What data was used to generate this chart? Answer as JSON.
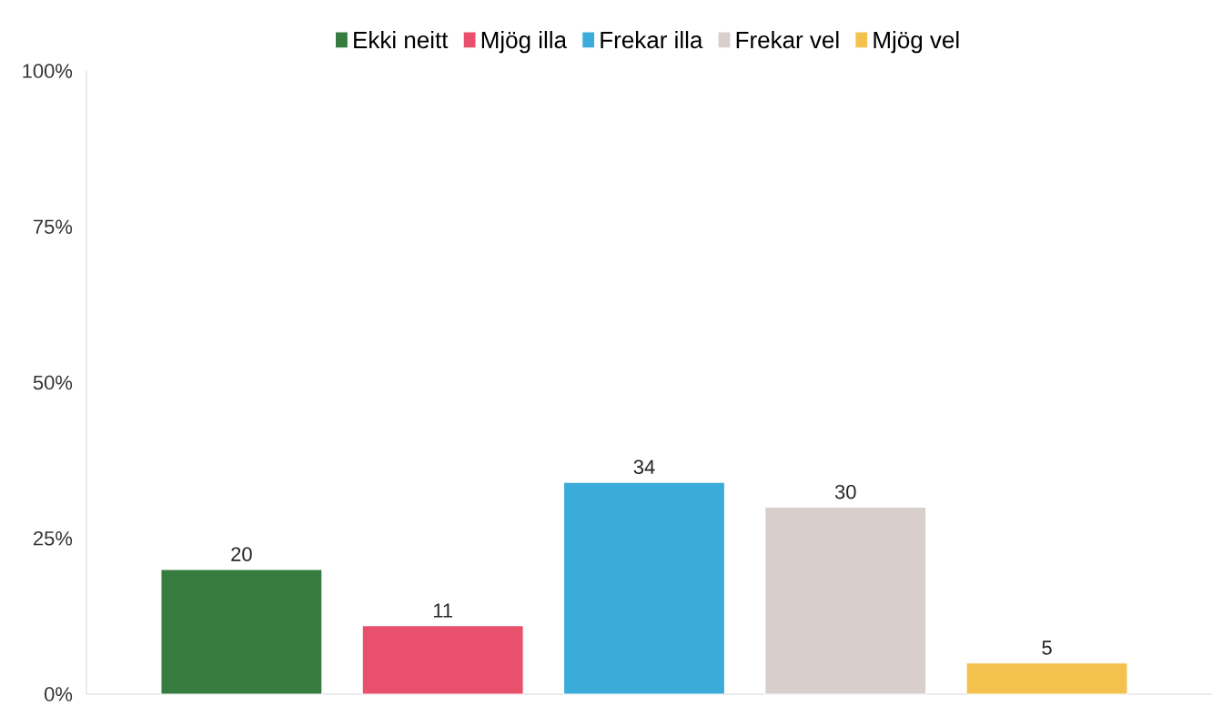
{
  "chart_data": {
    "type": "bar",
    "categories": [
      null,
      null,
      null,
      null,
      null
    ],
    "series": [
      {
        "name": "Ekki neitt",
        "color": "#367c3f",
        "values": [
          20,
          null,
          null,
          null,
          null
        ]
      },
      {
        "name": "Mjög illa",
        "color": "#e8506b",
        "values": [
          null,
          11,
          null,
          null,
          null
        ]
      },
      {
        "name": "Frekar illa",
        "color": "#3bacd9",
        "values": [
          null,
          null,
          34,
          null,
          null
        ]
      },
      {
        "name": "Frekar vel",
        "color": "#d8cfcc",
        "values": [
          null,
          null,
          null,
          30,
          null
        ]
      },
      {
        "name": "Mjög vel",
        "color": "#f2c14e",
        "values": [
          null,
          null,
          null,
          null,
          5
        ]
      }
    ],
    "ylim": [
      0,
      100
    ],
    "yticks": [
      {
        "value": 0,
        "label": "0%"
      },
      {
        "value": 25,
        "label": "25%"
      },
      {
        "value": 50,
        "label": "50%"
      },
      {
        "value": 75,
        "label": "75%"
      },
      {
        "value": 100,
        "label": "100%"
      }
    ],
    "data_labels": true,
    "legend": "top",
    "grid": false
  }
}
